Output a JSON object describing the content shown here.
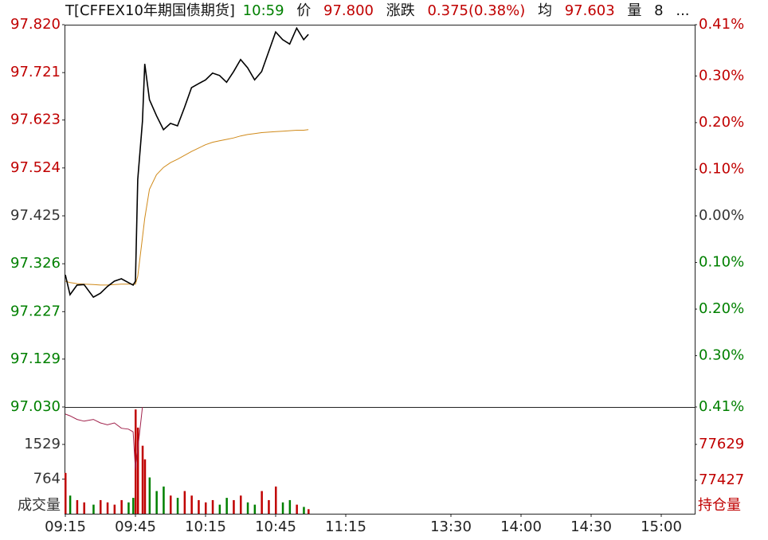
{
  "chart_data": {
    "type": "line",
    "title": "T[CFFEX10年期国债期货]",
    "header": {
      "time": "10:59",
      "price_label": "价",
      "price": "97.800",
      "change_label": "涨跌",
      "change": "0.375(0.38%)",
      "avg_label": "均",
      "avg": "97.603",
      "volume_label": "量",
      "volume": "8",
      "more": "..."
    },
    "x": [
      "09:15",
      "09:17",
      "09:20",
      "09:23",
      "09:27",
      "09:30",
      "09:33",
      "09:36",
      "09:39",
      "09:42",
      "09:44",
      "09:45",
      "09:46",
      "09:48",
      "09:49",
      "09:51",
      "09:54",
      "09:57",
      "10:00",
      "10:03",
      "10:06",
      "10:09",
      "10:12",
      "10:15",
      "10:18",
      "10:21",
      "10:24",
      "10:27",
      "10:30",
      "10:33",
      "10:36",
      "10:39",
      "10:42",
      "10:45",
      "10:48",
      "10:51",
      "10:54",
      "10:57",
      "10:59"
    ],
    "series": [
      {
        "color": "#000000",
        "values": [
          97.303,
          97.262,
          97.282,
          97.283,
          97.257,
          97.265,
          97.279,
          97.29,
          97.295,
          97.287,
          97.282,
          97.29,
          97.5,
          97.62,
          97.739,
          97.665,
          97.632,
          97.603,
          97.616,
          97.611,
          97.649,
          97.69,
          97.698,
          97.706,
          97.72,
          97.715,
          97.701,
          97.723,
          97.748,
          97.731,
          97.706,
          97.723,
          97.764,
          97.805,
          97.789,
          97.78,
          97.813,
          97.789,
          97.8
        ]
      },
      {
        "color": "#d08a1a",
        "values": [
          97.29,
          97.287,
          97.285,
          97.284,
          97.283,
          97.282,
          97.282,
          97.283,
          97.284,
          97.284,
          97.284,
          97.284,
          97.3,
          97.38,
          97.42,
          97.48,
          97.51,
          97.525,
          97.535,
          97.542,
          97.55,
          97.558,
          97.565,
          97.572,
          97.577,
          97.58,
          97.583,
          97.586,
          97.59,
          97.593,
          97.595,
          97.597,
          97.598,
          97.599,
          97.6,
          97.601,
          97.602,
          97.602,
          97.603
        ]
      }
    ],
    "ylim": [
      97.03,
      97.82
    ],
    "yticks": [
      {
        "value": 97.82,
        "label": "97.820"
      },
      97.721,
      97.623,
      97.524,
      97.425,
      97.326,
      97.227,
      97.129,
      {
        "value": 97.03,
        "label": "97.030"
      }
    ],
    "y2lim": [
      -0.41,
      0.41
    ],
    "y2ticks": [
      {
        "value": 0.41,
        "label": "0.41%"
      },
      {
        "value": 0.3,
        "label": "0.30%"
      },
      {
        "value": 0.2,
        "label": "0.20%"
      },
      {
        "value": 0.1,
        "label": "0.10%"
      },
      {
        "value": 0,
        "label": "0.00%"
      },
      {
        "value": -0.1,
        "label": "0.10%"
      },
      {
        "value": -0.2,
        "label": "0.20%"
      },
      {
        "value": -0.3,
        "label": "0.30%"
      },
      {
        "value": -0.41,
        "label": "0.41%"
      }
    ],
    "up_color": "#c00000",
    "down_color": "#008000",
    "flat_color": "#333333",
    "xticks": [
      "09:15",
      "09:45",
      "10:15",
      "10:45",
      "11:15",
      "13:30",
      "14:00",
      "14:30",
      "15:00"
    ],
    "volume": {
      "label": "成交量",
      "ylim": [
        0,
        2355
      ],
      "yticks": [
        764,
        1529
      ],
      "values": [
        900,
        400,
        300,
        250,
        200,
        300,
        250,
        200,
        300,
        250,
        350,
        2300,
        1900,
        1500,
        1200,
        800,
        500,
        600,
        400,
        350,
        500,
        400,
        300,
        250,
        300,
        200,
        350,
        300,
        400,
        250,
        200,
        500,
        300,
        600,
        250,
        300,
        200,
        150,
        100
      ]
    },
    "open_interest": {
      "label": "持仓量",
      "color": "#a0204a",
      "ylim": [
        77238,
        77840
      ],
      "yticks": [
        77427,
        77629
      ],
      "values": [
        77800,
        77790,
        77770,
        77760,
        77770,
        77750,
        77740,
        77750,
        77720,
        77715,
        77700,
        77486,
        77600,
        77840,
        null,
        null,
        null,
        null,
        null,
        null,
        null,
        null,
        null,
        null,
        null,
        null,
        null,
        null,
        null,
        null,
        null,
        null,
        null,
        null,
        null,
        null,
        null,
        null,
        null
      ]
    }
  }
}
